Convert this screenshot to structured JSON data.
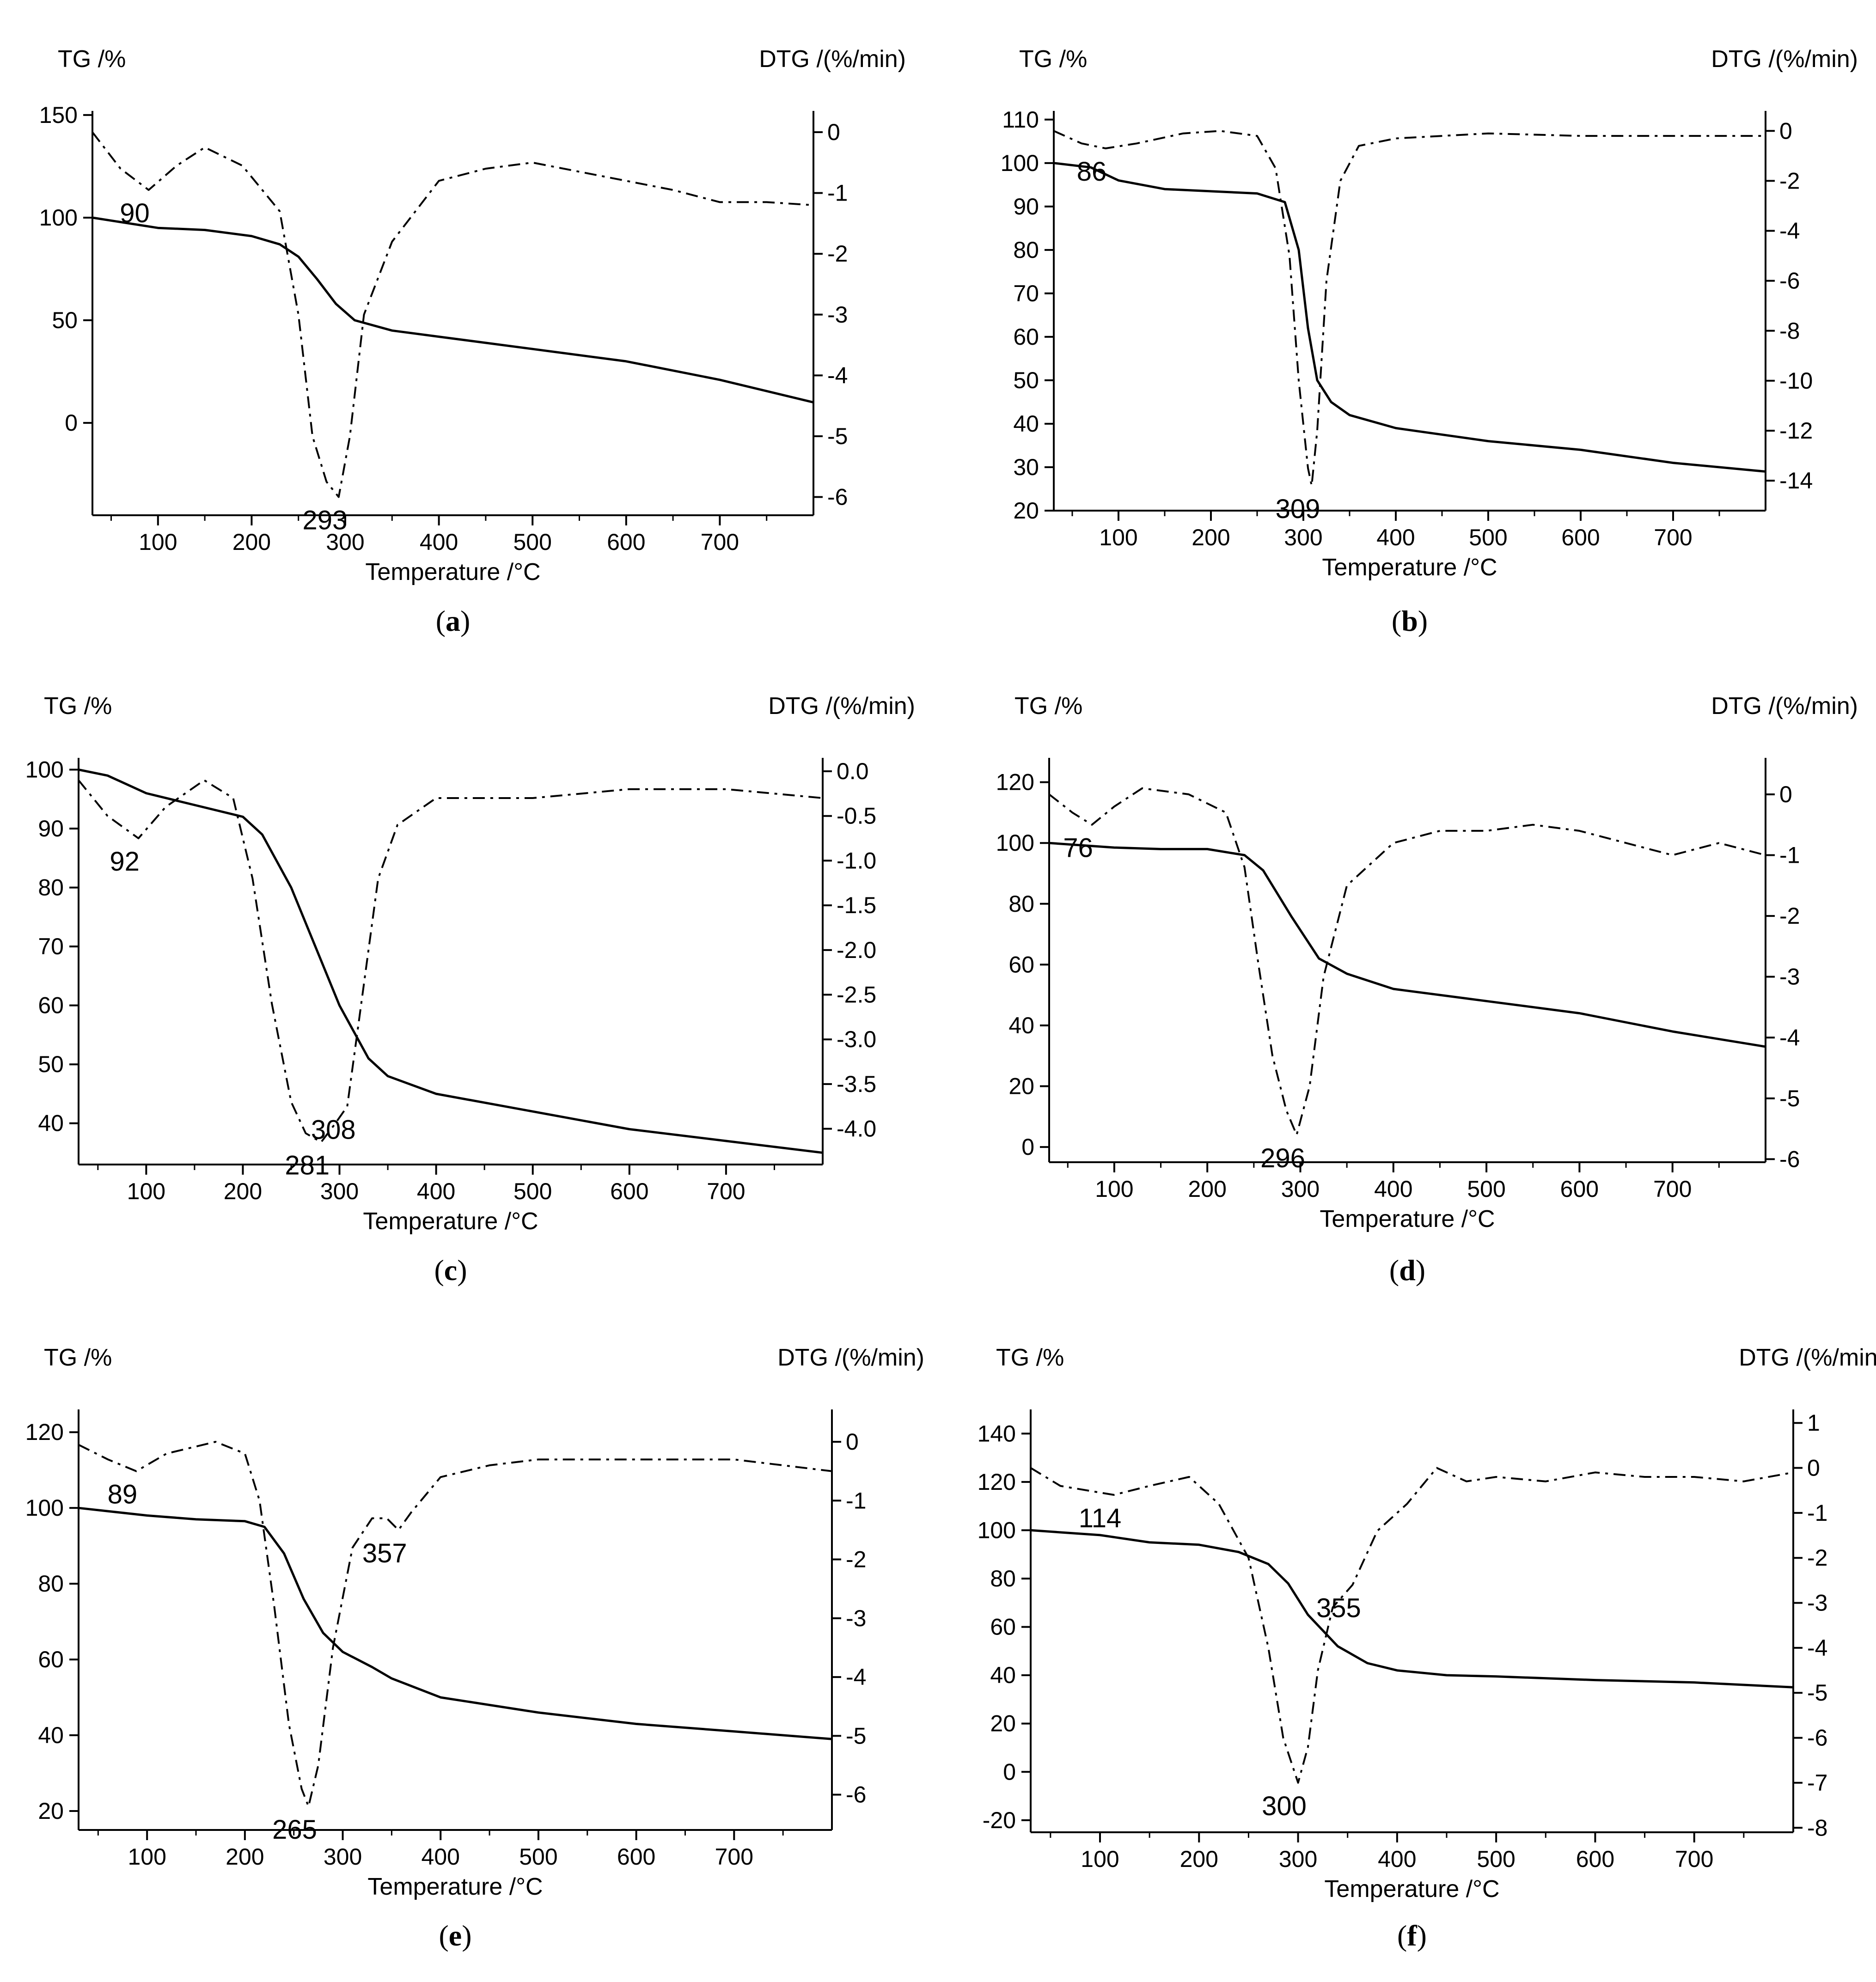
{
  "figure": {
    "x_axis_label": "Temperature /°C",
    "tg_axis_label": "TG /%",
    "dtg_axis_label": "DTG /(%/min)"
  },
  "chart_data": [
    {
      "type": "line",
      "panel": "a",
      "xlim": [
        30,
        800
      ],
      "xticks": [
        100,
        200,
        300,
        400,
        500,
        600,
        700
      ],
      "tg_lim": [
        -45,
        152
      ],
      "tg_ticks": [
        0,
        50,
        100,
        150
      ],
      "dtg_lim": [
        -6.3,
        0.35
      ],
      "dtg_ticks": [
        0,
        -1,
        -2,
        -3,
        -4,
        -5,
        -6
      ],
      "tg": {
        "x": [
          30,
          100,
          150,
          200,
          230,
          250,
          270,
          290,
          310,
          350,
          400,
          500,
          600,
          700,
          800
        ],
        "y": [
          100,
          95,
          94,
          91,
          87,
          81,
          70,
          58,
          50,
          45,
          42,
          36,
          30,
          21,
          10
        ]
      },
      "dtg": {
        "x": [
          30,
          60,
          90,
          120,
          150,
          190,
          230,
          250,
          265,
          280,
          293,
          305,
          320,
          350,
          400,
          450,
          500,
          550,
          600,
          650,
          700,
          750,
          800
        ],
        "y": [
          0,
          -0.6,
          -0.95,
          -0.55,
          -0.25,
          -0.55,
          -1.3,
          -3.0,
          -5.0,
          -5.75,
          -6.0,
          -5.0,
          -3.0,
          -1.8,
          -0.8,
          -0.6,
          -0.5,
          -0.65,
          -0.8,
          -0.95,
          -1.15,
          -1.15,
          -1.2
        ]
      },
      "annotations": [
        {
          "text": "90",
          "x": 90,
          "dtg": -0.95
        },
        {
          "text": "293",
          "x": 293,
          "dtg": -6.0
        }
      ]
    },
    {
      "type": "line",
      "panel": "b",
      "xlim": [
        30,
        800
      ],
      "xticks": [
        100,
        200,
        300,
        400,
        500,
        600,
        700
      ],
      "tg_lim": [
        20,
        112
      ],
      "tg_ticks": [
        20,
        30,
        40,
        50,
        60,
        70,
        80,
        90,
        100,
        110
      ],
      "dtg_lim": [
        -15.2,
        0.8
      ],
      "dtg_ticks": [
        0,
        -2,
        -4,
        -6,
        -8,
        -10,
        -12,
        -14
      ],
      "tg": {
        "x": [
          30,
          70,
          100,
          150,
          200,
          250,
          280,
          295,
          305,
          315,
          330,
          350,
          400,
          500,
          600,
          700,
          800
        ],
        "y": [
          100,
          99,
          96,
          94,
          93.5,
          93,
          91,
          80,
          62,
          50,
          45,
          42,
          39,
          36,
          34,
          31,
          29
        ]
      },
      "dtg": {
        "x": [
          30,
          60,
          86,
          120,
          170,
          210,
          250,
          270,
          285,
          295,
          305,
          309,
          315,
          325,
          340,
          360,
          400,
          500,
          600,
          700,
          800
        ],
        "y": [
          0,
          -0.5,
          -0.7,
          -0.5,
          -0.1,
          0,
          -0.2,
          -1.5,
          -5,
          -10,
          -13.5,
          -14.2,
          -12,
          -6,
          -2,
          -0.6,
          -0.3,
          -0.1,
          -0.2,
          -0.2,
          -0.2
        ]
      },
      "annotations": [
        {
          "text": "86",
          "x": 86,
          "dtg": -0.7
        },
        {
          "text": "309",
          "x": 309,
          "dtg": -14.2
        }
      ]
    },
    {
      "type": "line",
      "panel": "c",
      "xlim": [
        30,
        800
      ],
      "xticks": [
        100,
        200,
        300,
        400,
        500,
        600,
        700
      ],
      "tg_lim": [
        33,
        102
      ],
      "tg_ticks": [
        40,
        50,
        60,
        70,
        80,
        90,
        100
      ],
      "dtg_lim": [
        -4.4,
        0.15
      ],
      "dtg_ticks": [
        0.0,
        -0.5,
        -1.0,
        -1.5,
        -2.0,
        -2.5,
        -3.0,
        -3.5,
        -4.0
      ],
      "tg": {
        "x": [
          30,
          60,
          100,
          150,
          200,
          220,
          250,
          280,
          300,
          330,
          350,
          400,
          500,
          600,
          700,
          800
        ],
        "y": [
          100,
          99,
          96,
          94,
          92,
          89,
          80,
          68,
          60,
          51,
          48,
          45,
          42,
          39,
          37,
          35
        ],
        "labels": [
          "TG /%"
        ]
      },
      "dtg": {
        "x": [
          30,
          60,
          92,
          120,
          160,
          190,
          210,
          230,
          250,
          265,
          281,
          295,
          308,
          320,
          340,
          360,
          400,
          500,
          600,
          700,
          800
        ],
        "y": [
          -0.1,
          -0.5,
          -0.75,
          -0.4,
          -0.1,
          -0.3,
          -1.2,
          -2.6,
          -3.7,
          -4.05,
          -4.15,
          -3.95,
          -3.75,
          -2.8,
          -1.2,
          -0.6,
          -0.3,
          -0.3,
          -0.2,
          -0.2,
          -0.3
        ]
      },
      "annotations": [
        {
          "text": "92",
          "x": 92,
          "dtg": -0.75
        },
        {
          "text": "281",
          "x": 281,
          "dtg": -4.15
        },
        {
          "text": "308",
          "x": 308,
          "dtg": -3.75
        }
      ]
    },
    {
      "type": "line",
      "panel": "d",
      "xlim": [
        30,
        800
      ],
      "xticks": [
        100,
        200,
        300,
        400,
        500,
        600,
        700
      ],
      "tg_lim": [
        -5,
        128
      ],
      "tg_ticks": [
        0,
        20,
        40,
        60,
        80,
        100,
        120
      ],
      "dtg_lim": [
        -6.05,
        0.6
      ],
      "dtg_ticks": [
        0,
        -1,
        -2,
        -3,
        -4,
        -5,
        -6
      ],
      "tg": {
        "x": [
          30,
          100,
          150,
          200,
          240,
          260,
          290,
          320,
          350,
          400,
          500,
          600,
          700,
          800
        ],
        "y": [
          100,
          98.5,
          98,
          98,
          96,
          91,
          76,
          62,
          57,
          52,
          48,
          44,
          38,
          33
        ],
        "labels": [
          "TG /%"
        ]
      },
      "dtg": {
        "x": [
          30,
          55,
          76,
          100,
          130,
          180,
          220,
          240,
          255,
          270,
          285,
          296,
          310,
          325,
          350,
          400,
          450,
          500,
          550,
          600,
          650,
          700,
          750,
          800
        ],
        "y": [
          0,
          -0.3,
          -0.5,
          -0.2,
          0.1,
          0,
          -0.3,
          -1.2,
          -2.8,
          -4.3,
          -5.2,
          -5.6,
          -4.8,
          -3.0,
          -1.5,
          -0.8,
          -0.6,
          -0.6,
          -0.5,
          -0.6,
          -0.8,
          -1.0,
          -0.8,
          -1.0
        ]
      },
      "annotations": [
        {
          "text": "76",
          "x": 76,
          "dtg": -0.5
        },
        {
          "text": "296",
          "x": 296,
          "dtg": -5.6
        }
      ]
    },
    {
      "type": "line",
      "panel": "e",
      "xlim": [
        30,
        800
      ],
      "xticks": [
        100,
        200,
        300,
        400,
        500,
        600,
        700
      ],
      "tg_lim": [
        15,
        126
      ],
      "tg_ticks": [
        20,
        40,
        60,
        80,
        100,
        120
      ],
      "dtg_lim": [
        -6.6,
        0.55
      ],
      "dtg_ticks": [
        0,
        -1,
        -2,
        -3,
        -4,
        -5,
        -6
      ],
      "tg": {
        "x": [
          30,
          100,
          150,
          200,
          220,
          240,
          260,
          280,
          300,
          330,
          350,
          400,
          500,
          600,
          700,
          800
        ],
        "y": [
          100,
          98,
          97,
          96.5,
          95,
          88,
          76,
          67,
          62,
          58,
          55,
          50,
          46,
          43,
          41,
          39
        ]
      },
      "dtg": {
        "x": [
          30,
          60,
          89,
          120,
          170,
          200,
          215,
          230,
          245,
          258,
          265,
          275,
          290,
          310,
          330,
          345,
          357,
          370,
          400,
          450,
          500,
          600,
          700,
          800
        ],
        "y": [
          -0.05,
          -0.3,
          -0.5,
          -0.2,
          0,
          -0.2,
          -1.0,
          -2.8,
          -4.8,
          -5.9,
          -6.2,
          -5.5,
          -3.5,
          -1.8,
          -1.3,
          -1.3,
          -1.5,
          -1.2,
          -0.6,
          -0.4,
          -0.3,
          -0.3,
          -0.3,
          -0.5
        ]
      },
      "annotations": [
        {
          "text": "89",
          "x": 89,
          "dtg": -0.5
        },
        {
          "text": "265",
          "x": 265,
          "dtg": -6.2
        },
        {
          "text": "357",
          "x": 357,
          "dtg": -1.5
        }
      ]
    },
    {
      "type": "line",
      "panel": "f",
      "xlim": [
        30,
        800
      ],
      "xticks": [
        100,
        200,
        300,
        400,
        500,
        600,
        700
      ],
      "tg_lim": [
        -25,
        150
      ],
      "tg_ticks": [
        -20,
        0,
        20,
        40,
        60,
        80,
        100,
        120,
        140
      ],
      "dtg_lim": [
        -8.1,
        1.3
      ],
      "dtg_ticks": [
        1,
        0,
        -1,
        -2,
        -3,
        -4,
        -5,
        -6,
        -7,
        -8
      ],
      "tg": {
        "x": [
          30,
          100,
          150,
          200,
          240,
          270,
          290,
          310,
          340,
          370,
          400,
          450,
          500,
          600,
          700,
          800
        ],
        "y": [
          100,
          98,
          95,
          94,
          91,
          86,
          78,
          65,
          52,
          45,
          42,
          40,
          39.5,
          38,
          37,
          35
        ]
      },
      "dtg": {
        "x": [
          30,
          60,
          114,
          150,
          190,
          220,
          250,
          270,
          285,
          300,
          310,
          320,
          335,
          355,
          380,
          410,
          440,
          470,
          500,
          550,
          600,
          650,
          700,
          750,
          800
        ],
        "y": [
          0,
          -0.4,
          -0.6,
          -0.4,
          -0.2,
          -0.8,
          -2.0,
          -4.0,
          -6.0,
          -7.0,
          -6.2,
          -4.5,
          -3.1,
          -2.6,
          -1.4,
          -0.8,
          0,
          -0.3,
          -0.2,
          -0.3,
          -0.1,
          -0.2,
          -0.2,
          -0.3,
          -0.1
        ]
      },
      "annotations": [
        {
          "text": "114",
          "x": 114,
          "dtg": -0.6
        },
        {
          "text": "300",
          "x": 300,
          "dtg": -7.0
        },
        {
          "text": "355",
          "x": 355,
          "dtg": -2.6
        }
      ]
    }
  ],
  "panel_labels": [
    "(a)",
    "(b)",
    "(c)",
    "(d)",
    "(e)",
    "(f)"
  ]
}
